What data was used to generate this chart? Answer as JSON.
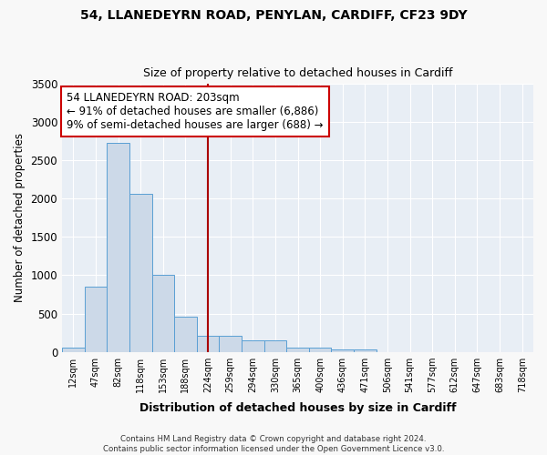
{
  "title_line1": "54, LLANEDEYRN ROAD, PENYLAN, CARDIFF, CF23 9DY",
  "title_line2": "Size of property relative to detached houses in Cardiff",
  "xlabel": "Distribution of detached houses by size in Cardiff",
  "ylabel": "Number of detached properties",
  "bar_color": "#ccd9e8",
  "bar_edge_color": "#5a9fd4",
  "bin_labels": [
    "12sqm",
    "47sqm",
    "82sqm",
    "118sqm",
    "153sqm",
    "188sqm",
    "224sqm",
    "259sqm",
    "294sqm",
    "330sqm",
    "365sqm",
    "400sqm",
    "436sqm",
    "471sqm",
    "506sqm",
    "541sqm",
    "577sqm",
    "612sqm",
    "647sqm",
    "683sqm",
    "718sqm"
  ],
  "bar_heights": [
    55,
    850,
    2730,
    2070,
    1010,
    460,
    210,
    210,
    145,
    145,
    55,
    50,
    35,
    25,
    0,
    0,
    0,
    0,
    0,
    0,
    0
  ],
  "property_line_x": 6.0,
  "property_line_color": "#aa0000",
  "annotation_text": "54 LLANEDEYRN ROAD: 203sqm\n← 91% of detached houses are smaller (6,886)\n9% of semi-detached houses are larger (688) →",
  "annotation_box_color": "#ffffff",
  "annotation_box_edge": "#cc0000",
  "footer_text": "Contains HM Land Registry data © Crown copyright and database right 2024.\nContains public sector information licensed under the Open Government Licence v3.0.",
  "ylim": [
    0,
    3500
  ],
  "background_color": "#e8eef5",
  "fig_background_color": "#f8f8f8",
  "grid_color": "#ffffff"
}
